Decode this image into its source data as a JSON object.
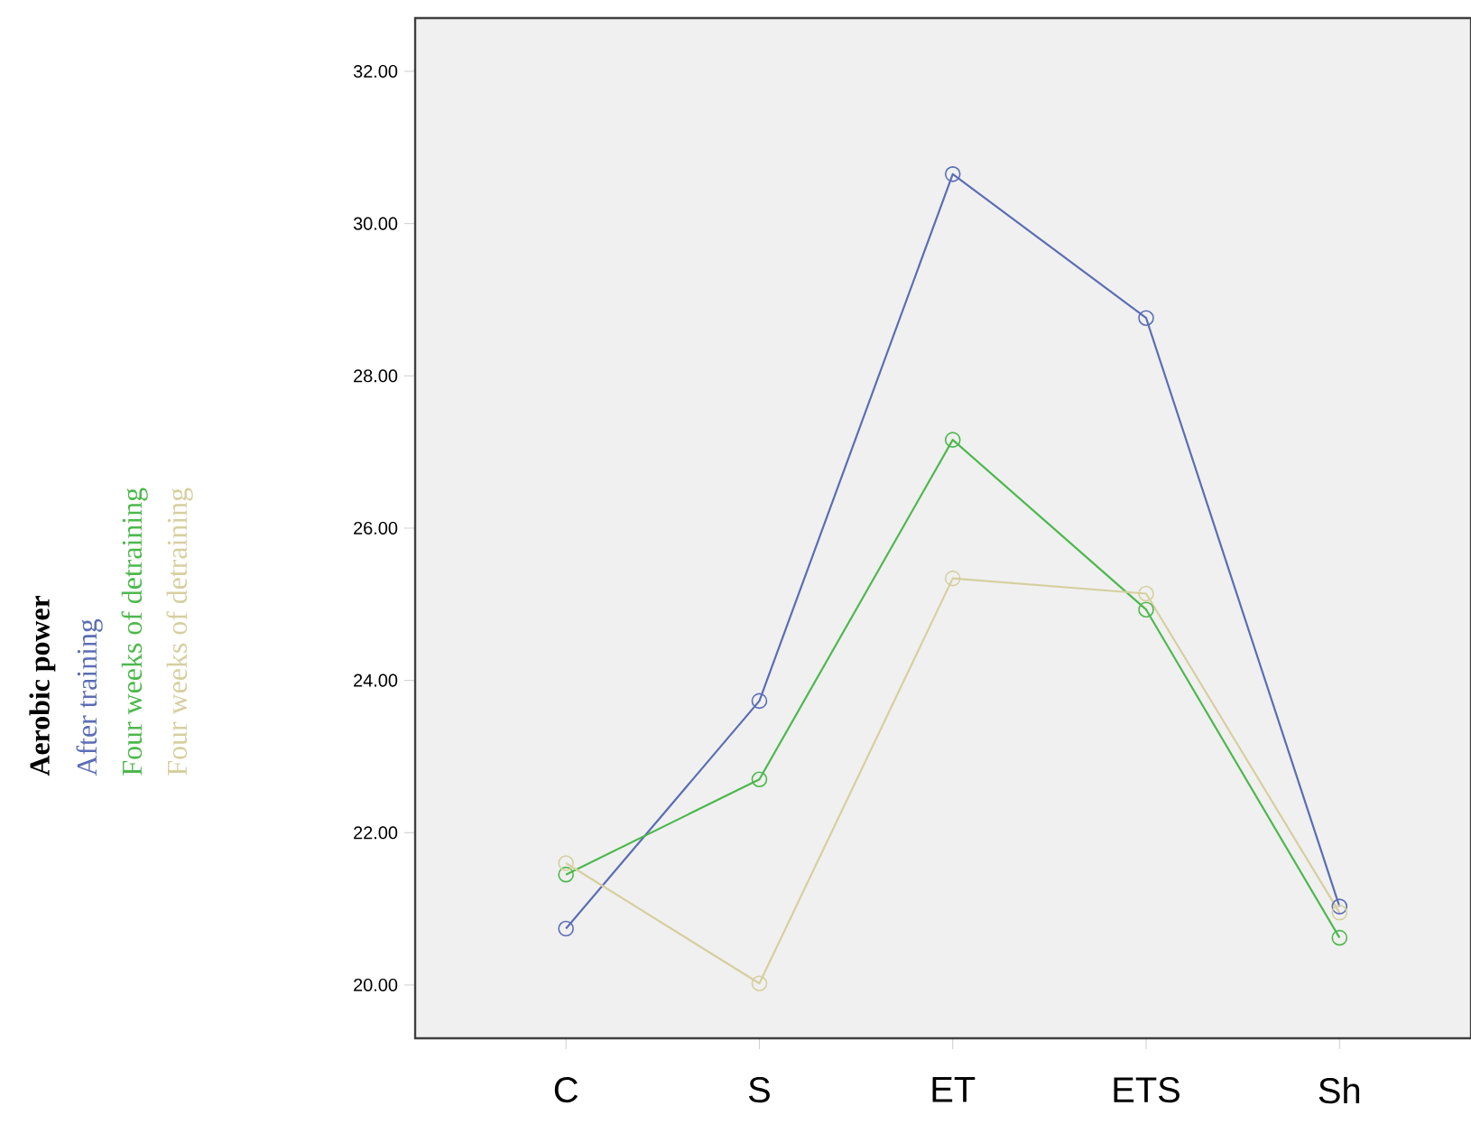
{
  "chart_data": {
    "type": "line",
    "legend_title": "Aerobic power",
    "categories": [
      "C",
      "S",
      "ET",
      "ETS",
      "Sh"
    ],
    "series": [
      {
        "name": "After training",
        "color": "#5a6db5",
        "values": [
          20.74,
          23.73,
          30.65,
          28.76,
          21.03
        ]
      },
      {
        "name": "Four weeks of detraining",
        "color": "#4cb84c",
        "values": [
          21.45,
          22.7,
          27.16,
          24.93,
          20.62
        ]
      },
      {
        "name": "Four weeks of detraining",
        "color": "#d6cf9f",
        "values": [
          21.6,
          20.02,
          25.34,
          25.14,
          20.95
        ]
      }
    ],
    "ylim": [
      19.3,
      32.7
    ],
    "yticks": [
      {
        "value": 20,
        "label": "20.00"
      },
      {
        "value": 22,
        "label": "22.00"
      },
      {
        "value": 24,
        "label": "24.00"
      },
      {
        "value": 26,
        "label": "26.00"
      },
      {
        "value": 28,
        "label": "28.00"
      },
      {
        "value": 30,
        "label": "30.00"
      },
      {
        "value": 32,
        "label": "32.00"
      }
    ],
    "marker": "circle",
    "line_style": "solid",
    "legend": "left",
    "grid": false
  }
}
